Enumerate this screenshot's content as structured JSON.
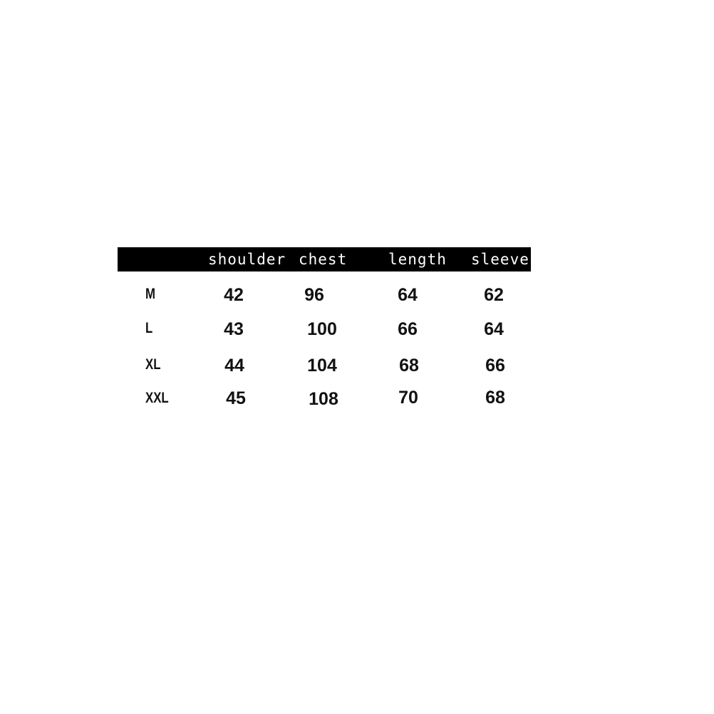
{
  "table": {
    "header_color": "#000000",
    "columns": [
      "shoulder",
      "chest",
      "length",
      "sleeve"
    ],
    "rows": [
      {
        "size": "M",
        "values": [
          "42",
          "96",
          "64",
          "62"
        ]
      },
      {
        "size": "L",
        "values": [
          "43",
          "100",
          "66",
          "64"
        ]
      },
      {
        "size": "XL",
        "values": [
          "44",
          "104",
          "68",
          "66"
        ]
      },
      {
        "size": "XXL",
        "values": [
          "45",
          "108",
          "70",
          "68"
        ]
      }
    ]
  }
}
